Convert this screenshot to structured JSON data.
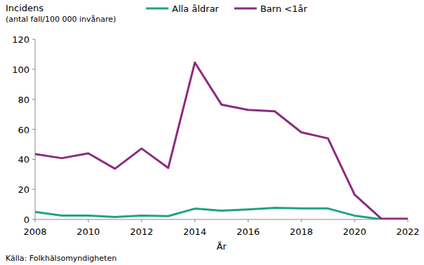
{
  "chart_data": {
    "type": "line",
    "ylabel": [
      "Incidens",
      "(antal fall/100 000 invånare)"
    ],
    "xlabel": "År",
    "source": "Källa: Folkhälsomyndigheten",
    "x": [
      2008,
      2009,
      2010,
      2011,
      2012,
      2013,
      2014,
      2015,
      2016,
      2017,
      2018,
      2019,
      2020,
      2021,
      2022
    ],
    "xlim": [
      2008,
      2022
    ],
    "xticks": [
      2008,
      2010,
      2012,
      2014,
      2016,
      2018,
      2020,
      2022
    ],
    "ylim": [
      0,
      120
    ],
    "yticks": [
      0,
      20,
      40,
      60,
      80,
      100,
      120
    ],
    "grid": false,
    "legend": "top",
    "series": [
      {
        "name": "Alla åldrar",
        "color": "#1fa383",
        "values": [
          5,
          2.6,
          2.6,
          1.6,
          2.6,
          2.2,
          7.2,
          5.8,
          6.7,
          7.7,
          7.3,
          7.3,
          2.5,
          0.1,
          0.2
        ]
      },
      {
        "name": "Barn <1år",
        "color": "#8c2a80",
        "values": [
          43.5,
          40.8,
          44,
          33.8,
          47.2,
          34.3,
          104.5,
          76.5,
          73,
          72,
          58,
          54,
          16.5,
          0.5,
          0.5
        ]
      }
    ]
  }
}
